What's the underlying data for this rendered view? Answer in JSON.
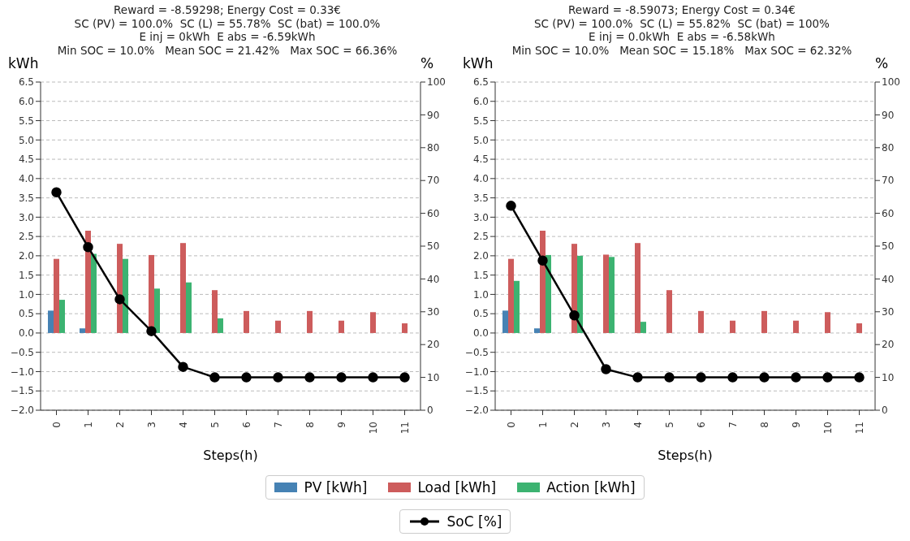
{
  "chart_data": [
    {
      "type": "bar",
      "title": "Reward = -8.59298; Energy Cost = 0.33€\nSC (PV) = 100.0%  SC (L) = 55.78%  SC (bat) = 100.0%\nE inj = 0kWh  E abs = -6.59kWh\nMin SOC = 10.0%   Mean SOC = 21.42%   Max SOC = 66.36%",
      "xlabel": "Steps(h)",
      "ylabel": "kWh",
      "y2label": "%",
      "categories": [
        "0",
        "1",
        "2",
        "3",
        "4",
        "5",
        "6",
        "7",
        "8",
        "9",
        "10",
        "11"
      ],
      "series": [
        {
          "name": "PV [kWh]",
          "color": "#4682b4",
          "values": [
            0.58,
            0.12,
            0,
            0,
            0,
            0,
            0,
            0,
            0,
            0,
            0,
            0
          ]
        },
        {
          "name": "Load [kWh]",
          "color": "#cd5c5c",
          "values": [
            1.92,
            2.65,
            2.31,
            2.02,
            2.33,
            1.11,
            0.57,
            0.32,
            0.57,
            0.32,
            0.54,
            0.25
          ]
        },
        {
          "name": "Action [kWh]",
          "color": "#3cb371",
          "values": [
            0.86,
            2.05,
            1.92,
            1.15,
            1.31,
            0.38,
            0,
            0,
            0,
            0,
            0,
            0
          ]
        },
        {
          "name": "SoC [%]",
          "type": "line",
          "axis": "y2",
          "marker": "circle",
          "color": "#000000",
          "values": [
            66.4,
            49.7,
            33.8,
            24.1,
            13.2,
            10,
            10,
            10,
            10,
            10,
            10,
            10
          ]
        }
      ],
      "ylim": [
        -2,
        6.5
      ],
      "yticks": [
        {
          "value": -2,
          "label": "−2.0"
        },
        {
          "value": -1.5,
          "label": "−1.5"
        },
        {
          "value": -1,
          "label": "−1.0"
        },
        {
          "value": -0.5,
          "label": "−0.5"
        },
        {
          "value": 0,
          "label": "0.0"
        },
        0.5,
        {
          "value": 1,
          "label": "1.0"
        },
        1.5,
        {
          "value": 2,
          "label": "2.0"
        },
        2.5,
        {
          "value": 3,
          "label": "3.0"
        },
        3.5,
        {
          "value": 4,
          "label": "4.0"
        },
        4.5,
        {
          "value": 5,
          "label": "5.0"
        },
        5.5,
        {
          "value": 6,
          "label": "6.0"
        },
        6.5
      ],
      "y2lim": [
        0,
        100
      ],
      "y2ticks": [
        0,
        10,
        20,
        30,
        40,
        50,
        60,
        70,
        80,
        90,
        100
      ],
      "grid": "y",
      "legend": "bottom"
    },
    {
      "type": "bar",
      "title": "Reward = -8.59073; Energy Cost = 0.34€\nSC (PV) = 100.0%  SC (L) = 55.82%  SC (bat) = 100%\nE inj = 0.0kWh  E abs = -6.58kWh\nMin SOC = 10.0%   Mean SOC = 15.18%   Max SOC = 62.32%",
      "xlabel": "Steps(h)",
      "ylabel": "kWh",
      "y2label": "%",
      "categories": [
        "0",
        "1",
        "2",
        "3",
        "4",
        "5",
        "6",
        "7",
        "8",
        "9",
        "10",
        "11"
      ],
      "series": [
        {
          "color": "#4682b4",
          "values": [
            0.58,
            0.12,
            0,
            0,
            0,
            0,
            0,
            0,
            0,
            0,
            0,
            0
          ]
        },
        {
          "color": "#cd5c5c",
          "values": [
            1.92,
            2.65,
            2.31,
            2.03,
            2.33,
            1.11,
            0.57,
            0.32,
            0.57,
            0.32,
            0.54,
            0.25
          ]
        },
        {
          "color": "#3cb371",
          "values": [
            1.35,
            2.02,
            2.0,
            1.97,
            0.29,
            0,
            0,
            0,
            0,
            0,
            0,
            0
          ]
        },
        {
          "type": "line",
          "axis": "y2",
          "marker": "circle",
          "color": "#000000",
          "values": [
            62.3,
            45.6,
            28.9,
            12.5,
            10,
            10,
            10,
            10,
            10,
            10,
            10,
            10
          ]
        }
      ],
      "ylim": [
        -2,
        6.5
      ],
      "yticks": [
        {
          "value": -2,
          "label": "−2.0"
        },
        {
          "value": -1.5,
          "label": "−1.5"
        },
        {
          "value": -1,
          "label": "−1.0"
        },
        {
          "value": -0.5,
          "label": "−0.5"
        },
        {
          "value": 0,
          "label": "0.0"
        },
        0.5,
        {
          "value": 1,
          "label": "1.0"
        },
        1.5,
        {
          "value": 2,
          "label": "2.0"
        },
        2.5,
        {
          "value": 3,
          "label": "3.0"
        },
        3.5,
        {
          "value": 4,
          "label": "4.0"
        },
        4.5,
        {
          "value": 5,
          "label": "5.0"
        },
        5.5,
        {
          "value": 6,
          "label": "6.0"
        },
        6.5
      ],
      "y2lim": [
        0,
        100
      ],
      "y2ticks": [
        0,
        10,
        20,
        30,
        40,
        50,
        60,
        70,
        80,
        90,
        100
      ],
      "grid": "y"
    }
  ]
}
